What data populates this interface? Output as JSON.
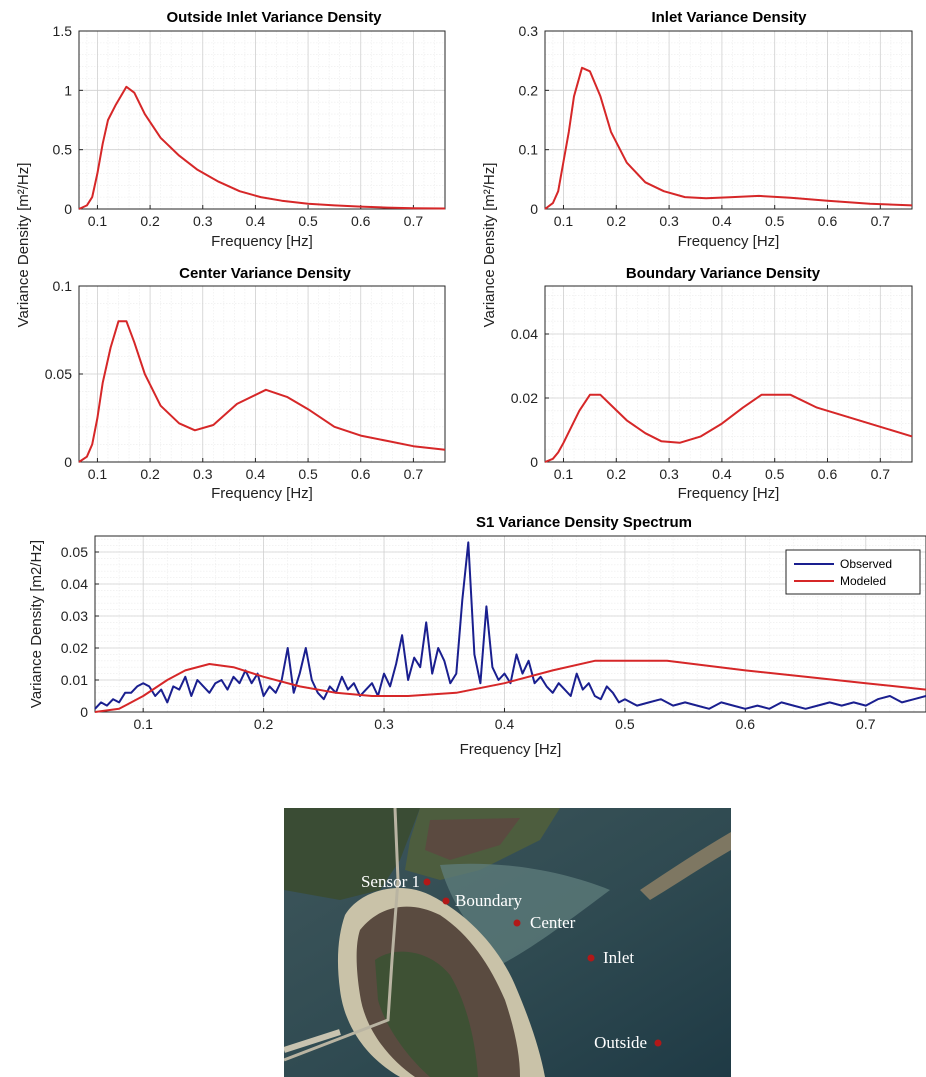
{
  "chart_data": [
    {
      "type": "line",
      "title": "Outside Inlet Variance Density",
      "xlabel": "Frequency [Hz]",
      "ylabel": "",
      "xlim": [
        0.065,
        0.76
      ],
      "ylim": [
        0,
        1.5
      ],
      "xticks": [
        "0.1",
        "0.2",
        "0.3",
        "0.4",
        "0.5",
        "0.6",
        "0.7"
      ],
      "yticks": [
        "0",
        "0.5",
        "1",
        "1.5"
      ],
      "grid": true,
      "series": [
        {
          "color": "#d62728",
          "x": [
            0.065,
            0.08,
            0.09,
            0.1,
            0.11,
            0.12,
            0.135,
            0.155,
            0.17,
            0.19,
            0.22,
            0.255,
            0.29,
            0.33,
            0.37,
            0.41,
            0.45,
            0.5,
            0.55,
            0.6,
            0.65,
            0.7,
            0.76
          ],
          "y": [
            0,
            0.03,
            0.1,
            0.3,
            0.55,
            0.75,
            0.88,
            1.03,
            0.98,
            0.8,
            0.6,
            0.45,
            0.33,
            0.23,
            0.15,
            0.1,
            0.07,
            0.045,
            0.03,
            0.02,
            0.012,
            0.007,
            0.004
          ]
        }
      ]
    },
    {
      "type": "line",
      "title": "Inlet Variance Density",
      "xlabel": "Frequency [Hz]",
      "ylabel": "",
      "xlim": [
        0.065,
        0.76
      ],
      "ylim": [
        0,
        0.3
      ],
      "xticks": [
        "0.1",
        "0.2",
        "0.3",
        "0.4",
        "0.5",
        "0.6",
        "0.7"
      ],
      "yticks": [
        "0",
        "0.1",
        "0.2",
        "0.3"
      ],
      "grid": true,
      "series": [
        {
          "color": "#d62728",
          "x": [
            0.065,
            0.08,
            0.09,
            0.1,
            0.11,
            0.12,
            0.135,
            0.15,
            0.17,
            0.19,
            0.22,
            0.255,
            0.29,
            0.33,
            0.37,
            0.42,
            0.47,
            0.53,
            0.6,
            0.68,
            0.76
          ],
          "y": [
            0,
            0.01,
            0.03,
            0.08,
            0.13,
            0.19,
            0.238,
            0.232,
            0.19,
            0.13,
            0.078,
            0.045,
            0.03,
            0.02,
            0.018,
            0.02,
            0.022,
            0.019,
            0.014,
            0.009,
            0.006
          ]
        }
      ]
    },
    {
      "type": "line",
      "title": "Center Variance Density",
      "xlabel": "Frequency [Hz]",
      "ylabel": "",
      "xlim": [
        0.065,
        0.76
      ],
      "ylim": [
        0,
        0.1
      ],
      "xticks": [
        "0.1",
        "0.2",
        "0.3",
        "0.4",
        "0.5",
        "0.6",
        "0.7"
      ],
      "yticks": [
        "0",
        "0.05",
        "0.1"
      ],
      "grid": true,
      "series": [
        {
          "color": "#d62728",
          "x": [
            0.065,
            0.08,
            0.09,
            0.1,
            0.11,
            0.125,
            0.14,
            0.155,
            0.17,
            0.19,
            0.22,
            0.255,
            0.285,
            0.32,
            0.365,
            0.42,
            0.46,
            0.5,
            0.55,
            0.6,
            0.65,
            0.7,
            0.76
          ],
          "y": [
            0,
            0.003,
            0.01,
            0.025,
            0.045,
            0.065,
            0.08,
            0.08,
            0.068,
            0.05,
            0.032,
            0.022,
            0.018,
            0.021,
            0.033,
            0.041,
            0.037,
            0.03,
            0.02,
            0.015,
            0.012,
            0.009,
            0.007
          ]
        }
      ]
    },
    {
      "type": "line",
      "title": "Boundary Variance Density",
      "xlabel": "Frequency [Hz]",
      "ylabel": "",
      "xlim": [
        0.065,
        0.76
      ],
      "ylim": [
        0,
        0.055
      ],
      "xticks": [
        "0.1",
        "0.2",
        "0.3",
        "0.4",
        "0.5",
        "0.6",
        "0.7"
      ],
      "yticks": [
        "0",
        "0.02",
        "0.04"
      ],
      "grid": true,
      "series": [
        {
          "color": "#d62728",
          "x": [
            0.065,
            0.08,
            0.09,
            0.1,
            0.115,
            0.13,
            0.15,
            0.17,
            0.195,
            0.22,
            0.255,
            0.285,
            0.32,
            0.36,
            0.4,
            0.44,
            0.475,
            0.53,
            0.58,
            0.64,
            0.7,
            0.76
          ],
          "y": [
            0,
            0.001,
            0.003,
            0.006,
            0.011,
            0.016,
            0.021,
            0.021,
            0.017,
            0.013,
            0.009,
            0.0065,
            0.006,
            0.008,
            0.012,
            0.017,
            0.021,
            0.021,
            0.017,
            0.014,
            0.011,
            0.008
          ]
        }
      ]
    },
    {
      "type": "line",
      "title": "S1 Variance Density Spectrum",
      "xlabel": "Frequency [Hz]",
      "ylabel": "Variance Density [m2/Hz]",
      "xlim": [
        0.06,
        0.75
      ],
      "ylim": [
        0,
        0.055
      ],
      "xticks": [
        "0.1",
        "0.2",
        "0.3",
        "0.4",
        "0.5",
        "0.6",
        "0.7"
      ],
      "yticks": [
        "0",
        "0.01",
        "0.02",
        "0.03",
        "0.04",
        "0.05"
      ],
      "grid": true,
      "legend": "top-right",
      "series": [
        {
          "name": "Observed",
          "color": "#1a1f8f",
          "x": [
            0.06,
            0.065,
            0.07,
            0.075,
            0.08,
            0.085,
            0.09,
            0.095,
            0.1,
            0.105,
            0.11,
            0.115,
            0.12,
            0.125,
            0.13,
            0.135,
            0.14,
            0.145,
            0.15,
            0.155,
            0.16,
            0.165,
            0.17,
            0.175,
            0.18,
            0.185,
            0.19,
            0.195,
            0.2,
            0.205,
            0.21,
            0.215,
            0.22,
            0.225,
            0.23,
            0.235,
            0.24,
            0.245,
            0.25,
            0.255,
            0.26,
            0.265,
            0.27,
            0.275,
            0.28,
            0.285,
            0.29,
            0.295,
            0.3,
            0.305,
            0.31,
            0.315,
            0.32,
            0.325,
            0.33,
            0.335,
            0.34,
            0.345,
            0.35,
            0.355,
            0.36,
            0.365,
            0.37,
            0.375,
            0.38,
            0.385,
            0.39,
            0.395,
            0.4,
            0.405,
            0.41,
            0.415,
            0.42,
            0.425,
            0.43,
            0.435,
            0.44,
            0.445,
            0.45,
            0.455,
            0.46,
            0.465,
            0.47,
            0.475,
            0.48,
            0.485,
            0.49,
            0.495,
            0.5,
            0.51,
            0.52,
            0.53,
            0.54,
            0.55,
            0.56,
            0.57,
            0.58,
            0.59,
            0.6,
            0.61,
            0.62,
            0.63,
            0.64,
            0.65,
            0.66,
            0.67,
            0.68,
            0.69,
            0.7,
            0.71,
            0.72,
            0.73,
            0.74,
            0.75
          ],
          "y": [
            0.001,
            0.003,
            0.002,
            0.004,
            0.003,
            0.006,
            0.006,
            0.008,
            0.009,
            0.008,
            0.005,
            0.007,
            0.003,
            0.008,
            0.007,
            0.011,
            0.005,
            0.01,
            0.008,
            0.006,
            0.009,
            0.01,
            0.007,
            0.011,
            0.009,
            0.013,
            0.009,
            0.012,
            0.005,
            0.008,
            0.006,
            0.01,
            0.02,
            0.006,
            0.012,
            0.02,
            0.01,
            0.006,
            0.004,
            0.008,
            0.006,
            0.011,
            0.007,
            0.009,
            0.005,
            0.007,
            0.009,
            0.005,
            0.012,
            0.008,
            0.015,
            0.024,
            0.01,
            0.017,
            0.014,
            0.028,
            0.012,
            0.02,
            0.016,
            0.009,
            0.012,
            0.035,
            0.053,
            0.018,
            0.009,
            0.033,
            0.014,
            0.01,
            0.012,
            0.009,
            0.018,
            0.012,
            0.016,
            0.009,
            0.011,
            0.008,
            0.006,
            0.009,
            0.007,
            0.005,
            0.012,
            0.007,
            0.009,
            0.005,
            0.004,
            0.008,
            0.006,
            0.003,
            0.004,
            0.002,
            0.003,
            0.004,
            0.002,
            0.003,
            0.002,
            0.001,
            0.003,
            0.002,
            0.001,
            0.002,
            0.001,
            0.003,
            0.002,
            0.001,
            0.002,
            0.003,
            0.002,
            0.003,
            0.002,
            0.004,
            0.005,
            0.003,
            0.004,
            0.005
          ]
        },
        {
          "name": "Modeled",
          "color": "#d62728",
          "x": [
            0.06,
            0.08,
            0.1,
            0.12,
            0.135,
            0.155,
            0.175,
            0.2,
            0.23,
            0.26,
            0.29,
            0.32,
            0.36,
            0.4,
            0.44,
            0.475,
            0.535,
            0.6,
            0.65,
            0.7,
            0.75
          ],
          "y": [
            0,
            0.001,
            0.005,
            0.01,
            0.013,
            0.015,
            0.014,
            0.011,
            0.008,
            0.006,
            0.005,
            0.005,
            0.006,
            0.009,
            0.013,
            0.016,
            0.016,
            0.013,
            0.011,
            0.009,
            0.007
          ]
        }
      ]
    }
  ],
  "shared_ylabel": "Variance Density [m²/Hz]",
  "map": {
    "markers": [
      {
        "label": "Sensor 1"
      },
      {
        "label": "Boundary"
      },
      {
        "label": "Center"
      },
      {
        "label": "Inlet"
      },
      {
        "label": "Outside"
      }
    ]
  }
}
